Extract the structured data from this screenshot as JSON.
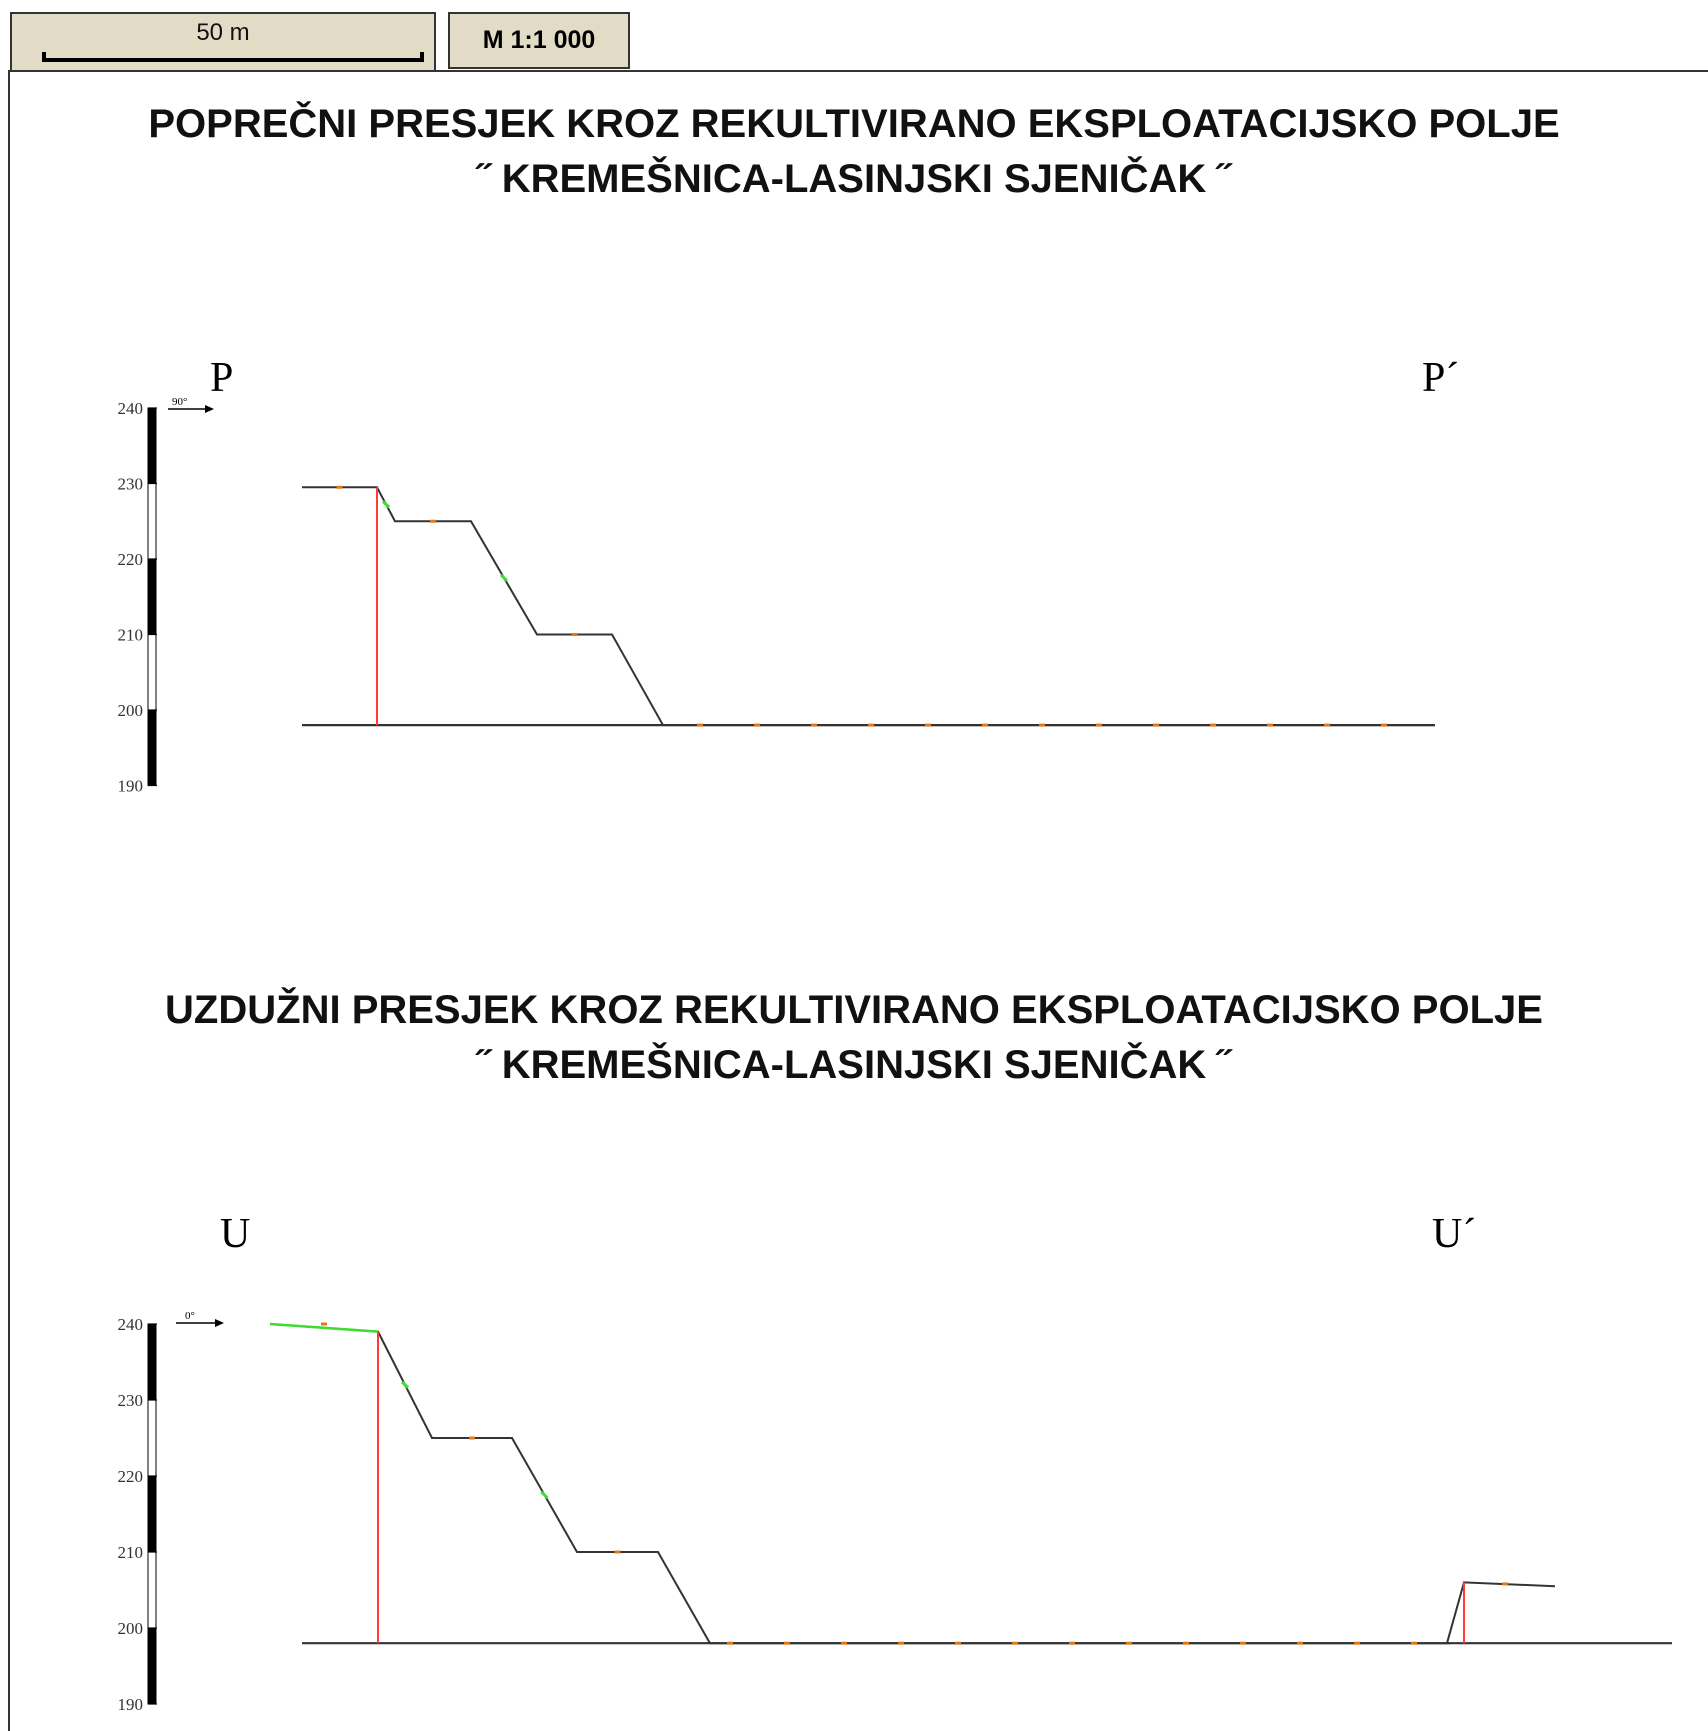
{
  "scale": {
    "bar_label": "50 m",
    "ratio": "M 1:1 000"
  },
  "sections": [
    {
      "id": "poprecni",
      "title_line1": "POPREČNI PRESJEK KROZ REKULTIVIRANO EKSPLOATACIJSKO POLJE",
      "title_line2": "˝ KREMEŠNICA-LASINJSKI SJENIČAK ˝",
      "label_start": "P",
      "label_end": "P´",
      "direction_label": "90°",
      "elevation_ticks": [
        "240",
        "230",
        "220",
        "210",
        "200",
        "190"
      ],
      "terrain_elevations_m": [
        229.5,
        229.5,
        225,
        225,
        210,
        210,
        198,
        198
      ],
      "base_elevation_m": 198,
      "marker_elevation_m": 229.5
    },
    {
      "id": "uzduzni",
      "title_line1": "UZDUŽNI PRESJEK KROZ REKULTIVIRANO EKSPLOATACIJSKO POLJE",
      "title_line2": "˝ KREMEŠNICA-LASINJSKI SJENIČAK ˝",
      "label_start": "U",
      "label_end": "U´",
      "direction_label": "0°",
      "elevation_ticks": [
        "240",
        "230",
        "220",
        "210",
        "200",
        "190"
      ],
      "terrain_elevations_m": [
        240,
        239,
        225,
        225,
        210,
        210,
        198,
        198
      ],
      "right_mound_elevations_m": [
        198,
        206,
        205.5
      ],
      "base_elevation_m": 198,
      "marker_elevation_m": 239
    }
  ],
  "colors": {
    "terrain_line": "#333333",
    "marker_line": "#ff3b3b",
    "vegetation": "#3ddc2e",
    "dot": "#e07a18",
    "scale_box_bg": "#e2dcc6"
  }
}
